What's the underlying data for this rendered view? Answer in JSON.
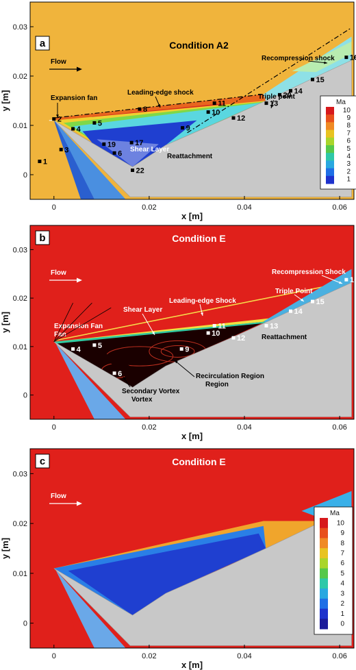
{
  "chart_data": [
    {
      "type": "heatmap",
      "panel_label": "a",
      "title": "Condition A2",
      "xlabel": "x [m]",
      "ylabel": "y [m]",
      "xlim": [
        -0.005,
        0.063
      ],
      "ylim": [
        -0.005,
        0.035
      ],
      "x_ticks": [
        "0",
        "0.02",
        "0.04",
        "0.06"
      ],
      "y_ticks": [
        "0",
        "0.01",
        "0.02",
        "0.03"
      ],
      "flow_label": "Flow",
      "legend": {
        "title": "Ma",
        "labels": [
          "10",
          "9",
          "8",
          "7",
          "6",
          "5",
          "4",
          "3",
          "2",
          "1"
        ]
      },
      "annotations": [
        "Recompression shock",
        "Triple point",
        "Leading-edge shock",
        "Expansion fan",
        "Shear Layer",
        "Reattachment"
      ],
      "probe_points": [
        {
          "label": "1",
          "x": -0.003,
          "y": 0.0027
        },
        {
          "label": "2",
          "x": 0.0,
          "y": 0.0113
        },
        {
          "label": "3",
          "x": 0.0015,
          "y": 0.0051
        },
        {
          "label": "4",
          "x": 0.004,
          "y": 0.0093
        },
        {
          "label": "5",
          "x": 0.0085,
          "y": 0.0105
        },
        {
          "label": "19",
          "x": 0.0105,
          "y": 0.0062
        },
        {
          "label": "6",
          "x": 0.0127,
          "y": 0.0044
        },
        {
          "label": "22",
          "x": 0.0165,
          "y": 0.0009
        },
        {
          "label": "17",
          "x": 0.0163,
          "y": 0.0065
        },
        {
          "label": "8",
          "x": 0.018,
          "y": 0.0133
        },
        {
          "label": "9",
          "x": 0.027,
          "y": 0.0095
        },
        {
          "label": "10",
          "x": 0.0324,
          "y": 0.0127
        },
        {
          "label": "11",
          "x": 0.0337,
          "y": 0.0145
        },
        {
          "label": "12",
          "x": 0.0377,
          "y": 0.0115
        },
        {
          "label": "13",
          "x": 0.0446,
          "y": 0.0145
        },
        {
          "label": "20",
          "x": 0.0474,
          "y": 0.0162
        },
        {
          "label": "14",
          "x": 0.0497,
          "y": 0.017
        },
        {
          "label": "15",
          "x": 0.0543,
          "y": 0.0193
        },
        {
          "label": "16",
          "x": 0.0614,
          "y": 0.0238
        }
      ]
    },
    {
      "type": "heatmap",
      "panel_label": "b",
      "title": "Condition E",
      "xlabel": "x [m]",
      "ylabel": "y [m]",
      "xlim": [
        -0.005,
        0.063
      ],
      "ylim": [
        -0.005,
        0.035
      ],
      "x_ticks": [
        "0",
        "0.02",
        "0.04",
        "0.06"
      ],
      "y_ticks": [
        "0",
        "0.01",
        "0.02",
        "0.03"
      ],
      "flow_label": "Flow",
      "annotations": [
        "Recompression Shock",
        "Triple Point",
        "Leading-edge Shock",
        "Shear Layer",
        "Expansion Fan",
        "Reattachment",
        "Recirculation Region",
        "Secondary Vortex"
      ],
      "probe_points": [
        {
          "label": "4",
          "x": 0.004,
          "y": 0.0095
        },
        {
          "label": "5",
          "x": 0.0085,
          "y": 0.0103
        },
        {
          "label": "6",
          "x": 0.0127,
          "y": 0.0045
        },
        {
          "label": "9",
          "x": 0.0268,
          "y": 0.0095
        },
        {
          "label": "10",
          "x": 0.0324,
          "y": 0.0128
        },
        {
          "label": "11",
          "x": 0.0337,
          "y": 0.0143
        },
        {
          "label": "12",
          "x": 0.0377,
          "y": 0.0118
        },
        {
          "label": "13",
          "x": 0.0446,
          "y": 0.0143
        },
        {
          "label": "14",
          "x": 0.0497,
          "y": 0.0173
        },
        {
          "label": "15",
          "x": 0.0543,
          "y": 0.0193
        },
        {
          "label": "16",
          "x": 0.0614,
          "y": 0.0238
        }
      ]
    },
    {
      "type": "heatmap",
      "panel_label": "c",
      "title": "Condition E",
      "xlabel": "x [m]",
      "ylabel": "y [m]",
      "xlim": [
        -0.005,
        0.063
      ],
      "ylim": [
        -0.005,
        0.035
      ],
      "x_ticks": [
        "0",
        "0.02",
        "0.04",
        "0.06"
      ],
      "y_ticks": [
        "0",
        "0.01",
        "0.02",
        "0.03"
      ],
      "flow_label": "Flow",
      "legend": {
        "title": "Ma",
        "labels": [
          "10",
          "9",
          "8",
          "7",
          "6",
          "5",
          "4",
          "3",
          "2",
          "1",
          "0"
        ]
      }
    }
  ],
  "colors": {
    "a_background": "#f0b43c",
    "e_background": "#e0201b",
    "model_gray": "#c8c8c8",
    "recirc_blue": "#1f3fd0",
    "shear_cyan": "#5ad7e0",
    "leading_orange": "#e8661e",
    "legend_scale": [
      "#d7191c",
      "#e8501c",
      "#f08a24",
      "#e8c320",
      "#a9d52b",
      "#56c84a",
      "#2ec8a8",
      "#29a8e0",
      "#1f6fe6",
      "#1e32cc",
      "#1a1a9a"
    ]
  }
}
